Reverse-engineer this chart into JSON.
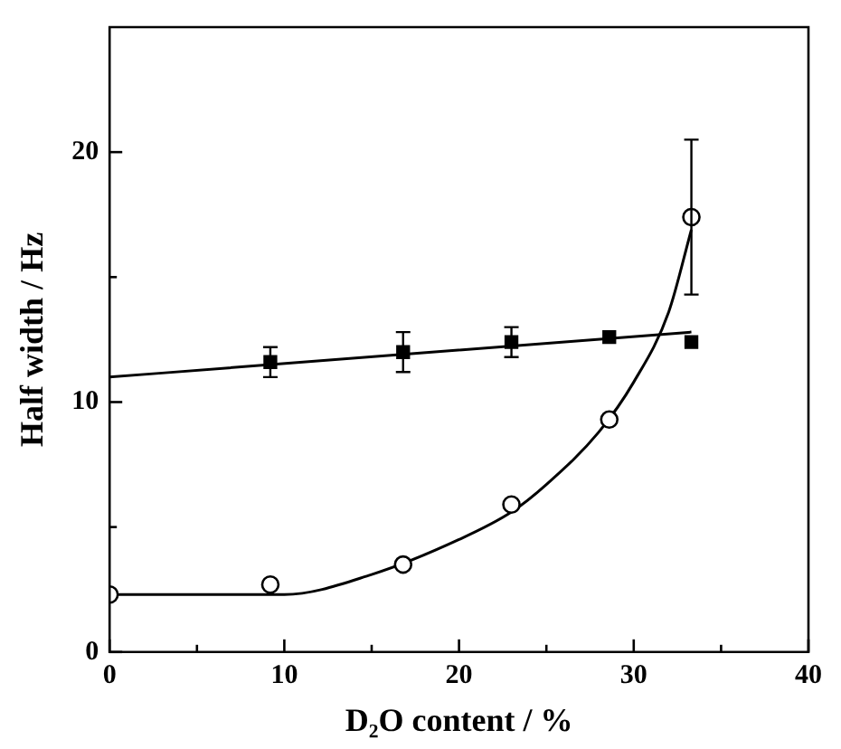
{
  "chart_data": {
    "type": "scatter",
    "xlabel": "D₂O content / %",
    "ylabel": "Half width / Hz",
    "xlim": [
      0,
      40
    ],
    "ylim": [
      0,
      25
    ],
    "xticks": [
      0,
      {
        "value": 5,
        "label": null
      },
      10,
      {
        "value": 15,
        "label": null
      },
      20,
      {
        "value": 25,
        "label": null
      },
      30,
      {
        "value": 35,
        "label": null
      },
      40
    ],
    "yticks": [
      0,
      {
        "value": 5,
        "label": null
      },
      10,
      {
        "value": 15,
        "label": null
      },
      20
    ],
    "grid": false,
    "legend": false,
    "series": [
      {
        "marker": "square",
        "color": "#000000",
        "x": [
          9.2,
          16.8,
          23.0,
          28.6,
          33.3
        ],
        "values": [
          11.6,
          12.0,
          12.4,
          12.6,
          12.4
        ],
        "errors": [
          0.6,
          0.8,
          0.6,
          null,
          null
        ]
      },
      {
        "marker": "circle",
        "color": "#000000",
        "x": [
          0,
          9.2,
          16.8,
          23.0,
          28.6,
          33.3
        ],
        "values": [
          2.3,
          2.7,
          3.5,
          5.9,
          9.3,
          17.4
        ],
        "errors": [
          null,
          null,
          null,
          null,
          null,
          3.1
        ]
      },
      {
        "type": "line",
        "marker": "none",
        "line_style": "solid",
        "color": "#000000",
        "x": [
          0,
          33.3
        ],
        "values": [
          11.0,
          12.8
        ]
      },
      {
        "type": "line",
        "marker": "none",
        "line_style": "solid",
        "color": "#000000",
        "x": [
          0,
          5,
          10,
          15,
          20,
          23,
          25,
          28,
          30,
          32,
          33.3
        ],
        "values": [
          2.3,
          2.3,
          2.3,
          3.1,
          4.5,
          5.6,
          6.7,
          8.8,
          10.8,
          13.6,
          16.9
        ]
      }
    ]
  }
}
